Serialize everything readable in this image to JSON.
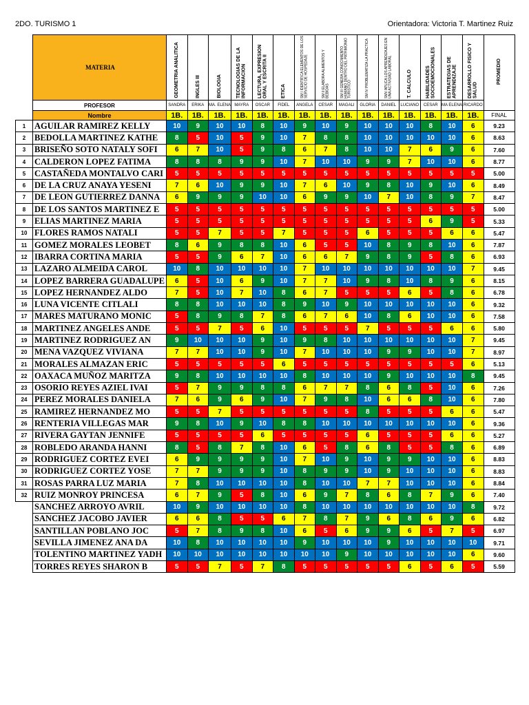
{
  "header": {
    "group": "2DO. TURISMO 1",
    "advisor": "Orientadora: Victoria T. Martinez Ruiz"
  },
  "labels": {
    "materia": "MATERIA",
    "profesor": "PROFESOR",
    "nombre": "Nombre",
    "promedio": "PROMEDIO",
    "final": "FINAL",
    "period": "1B."
  },
  "subjects": [
    {
      "name": "GEOMETRIA ANALITICA",
      "teacher": "SANDRA",
      "small": false
    },
    {
      "name": "INGLES III",
      "teacher": "ERIKA",
      "small": false
    },
    {
      "name": "BIOLOGIA",
      "teacher": "MA. ELENA",
      "small": false
    },
    {
      "name": "TECNOLOGIAS DE LA INFORMACION",
      "teacher": "MAYRA",
      "small": false
    },
    {
      "name": "LECTURA, EXPRESION ORAL Y ESCRITA II",
      "teacher": "OSCAR",
      "small": false
    },
    {
      "name": "ETICA",
      "teacher": "FIDEL",
      "small": false
    },
    {
      "name": "SM I IDENTIFICA ELEMENTOS DE LOS SERVICIO DE HOSPEDAJE",
      "teacher": "ANGELA",
      "small": true
    },
    {
      "name": "SM II ELABORA ALIMENTOS Y BEBIDAS",
      "teacher": "CESAR",
      "small": true
    },
    {
      "name": "SM III GENERA CONOCIMIENTO HUMANO DENTRO DEL PATRIMONIO TURISTICO",
      "teacher": "MAGALI",
      "small": true
    },
    {
      "name": "SM IV PROBLEMATIZA LA PRACTICA",
      "teacher": "GLORIA",
      "small": true
    },
    {
      "name": "SMV APLICA LOS APRENDIZAJES EN UNA ACTIVIDAD LABORAL",
      "teacher": "DANIEL",
      "small": true
    },
    {
      "name": "T. CALCULO",
      "teacher": "LUCIANO",
      "small": false
    },
    {
      "name": "HABILIDADES SOCIOEMOCIONALES",
      "teacher": "CESAR",
      "small": false
    },
    {
      "name": "ESTRATEGIAS DE APRENDIZAJE",
      "teacher": "MA ELENA",
      "small": false
    },
    {
      "name": "DESARROLLO FISICO Y SALUD",
      "teacher": "RICARDO",
      "small": false
    }
  ],
  "students": [
    {
      "n": "1",
      "name": "AGUILAR RAMIREZ KELLY",
      "grades": [
        10,
        9,
        10,
        10,
        8,
        10,
        9,
        10,
        9,
        10,
        10,
        10,
        8,
        10,
        6
      ],
      "avg": "9.23"
    },
    {
      "n": "2",
      "name": "BEDOLLA MARTINEZ KATHE",
      "grades": [
        8,
        5,
        10,
        5,
        9,
        10,
        7,
        8,
        8,
        10,
        10,
        10,
        10,
        10,
        6
      ],
      "avg": "8.63"
    },
    {
      "n": "3",
      "name": "BRISEÑO SOTO NATALY SOFI",
      "grades": [
        6,
        7,
        10,
        5,
        9,
        8,
        6,
        7,
        8,
        10,
        10,
        7,
        6,
        9,
        6
      ],
      "avg": "7.60"
    },
    {
      "n": "4",
      "name": "CALDERON LOPEZ FATIMA",
      "grades": [
        8,
        8,
        8,
        9,
        9,
        10,
        7,
        10,
        10,
        9,
        9,
        7,
        10,
        10,
        6
      ],
      "avg": "8.77"
    },
    {
      "n": "5",
      "name": "CASTAÑEDA MONTALVO CARI",
      "grades": [
        5,
        5,
        5,
        5,
        5,
        5,
        5,
        5,
        5,
        5,
        5,
        5,
        5,
        5,
        5
      ],
      "avg": "5.00"
    },
    {
      "n": "6",
      "name": "DE LA CRUZ ANAYA YESENI",
      "grades": [
        7,
        6,
        10,
        9,
        9,
        10,
        7,
        6,
        10,
        9,
        8,
        10,
        9,
        10,
        6
      ],
      "avg": "8.49"
    },
    {
      "n": "7",
      "name": "DE LEON GUTIERREZ DANNA",
      "grades": [
        6,
        9,
        9,
        9,
        10,
        10,
        6,
        9,
        9,
        10,
        7,
        10,
        8,
        9,
        7
      ],
      "avg": "8.47"
    },
    {
      "n": "8",
      "name": "DE LOS SANTOS MARTINEZ E",
      "grades": [
        5,
        5,
        5,
        5,
        5,
        5,
        5,
        5,
        5,
        5,
        5,
        5,
        5,
        5,
        5
      ],
      "avg": "5.00"
    },
    {
      "n": "9",
      "name": "ELIAS MARTINEZ MARIA",
      "grades": [
        5,
        5,
        5,
        5,
        5,
        5,
        5,
        5,
        5,
        5,
        5,
        5,
        6,
        9,
        5
      ],
      "avg": "5.33"
    },
    {
      "n": "10",
      "name": "FLORES RAMOS NATALI",
      "grades": [
        5,
        5,
        7,
        5,
        5,
        7,
        5,
        5,
        5,
        6,
        5,
        5,
        5,
        6,
        6
      ],
      "avg": "5.47"
    },
    {
      "n": "11",
      "name": "GOMEZ MORALES LEOBET",
      "grades": [
        8,
        6,
        9,
        8,
        8,
        10,
        6,
        5,
        5,
        10,
        8,
        9,
        8,
        10,
        6
      ],
      "avg": "7.87"
    },
    {
      "n": "12",
      "name": "IBARRA CORTINA MARIA",
      "grades": [
        5,
        5,
        9,
        6,
        7,
        10,
        6,
        6,
        7,
        9,
        8,
        9,
        5,
        8,
        6
      ],
      "avg": "6.93"
    },
    {
      "n": "13",
      "name": "LAZARO ALMEIDA CAROL",
      "grades": [
        10,
        8,
        10,
        10,
        10,
        10,
        7,
        10,
        10,
        10,
        10,
        10,
        10,
        10,
        7
      ],
      "avg": "9.45"
    },
    {
      "n": "14",
      "name": "LOPEZ BARRERA GUADALUPE",
      "grades": [
        6,
        5,
        10,
        6,
        9,
        10,
        7,
        7,
        10,
        9,
        8,
        10,
        8,
        9,
        6
      ],
      "avg": "8.15"
    },
    {
      "n": "15",
      "name": "LOPEZ HERNANDEZ ALDO",
      "grades": [
        7,
        5,
        10,
        7,
        10,
        8,
        6,
        7,
        5,
        5,
        5,
        6,
        5,
        8,
        6
      ],
      "avg": "6.78"
    },
    {
      "n": "16",
      "name": "LUNA VICENTE CITLALI",
      "grades": [
        8,
        8,
        10,
        10,
        10,
        8,
        9,
        10,
        9,
        10,
        10,
        10,
        10,
        10,
        6
      ],
      "avg": "9.32"
    },
    {
      "n": "17",
      "name": "MARES MATURANO MONIC",
      "grades": [
        5,
        8,
        9,
        8,
        7,
        8,
        6,
        7,
        6,
        10,
        8,
        6,
        10,
        10,
        6
      ],
      "avg": "7.58"
    },
    {
      "n": "18",
      "name": "MARTINEZ ANGELES ANDE",
      "grades": [
        5,
        5,
        7,
        5,
        6,
        10,
        5,
        5,
        5,
        7,
        5,
        5,
        5,
        6,
        6
      ],
      "avg": "5.80"
    },
    {
      "n": "19",
      "name": "MARTINEZ RODRIGUEZ AN",
      "grades": [
        9,
        10,
        10,
        10,
        9,
        10,
        9,
        8,
        10,
        10,
        10,
        10,
        10,
        10,
        7
      ],
      "avg": "9.45"
    },
    {
      "n": "20",
      "name": "MENA VAZQUEZ VIVIANA",
      "grades": [
        7,
        7,
        10,
        10,
        9,
        10,
        7,
        10,
        10,
        10,
        9,
        9,
        10,
        10,
        7
      ],
      "avg": "8.97"
    },
    {
      "n": "21",
      "name": "MORALES ALMAZAN ERIC",
      "grades": [
        5,
        5,
        5,
        5,
        5,
        6,
        5,
        5,
        5,
        5,
        5,
        5,
        5,
        5,
        6
      ],
      "avg": "5.13"
    },
    {
      "n": "22",
      "name": "OAXACA MUÑOZ MARITZA",
      "grades": [
        9,
        8,
        10,
        10,
        10,
        10,
        8,
        10,
        10,
        10,
        9,
        10,
        10,
        10,
        8
      ],
      "avg": "9.45"
    },
    {
      "n": "23",
      "name": "OSORIO REYES AZIEL IVAI",
      "grades": [
        5,
        7,
        9,
        9,
        8,
        8,
        6,
        7,
        7,
        8,
        6,
        8,
        5,
        10,
        6
      ],
      "avg": "7.26"
    },
    {
      "n": "24",
      "name": "PEREZ MORALES DANIELA",
      "grades": [
        7,
        6,
        9,
        6,
        9,
        10,
        7,
        9,
        8,
        10,
        6,
        6,
        8,
        10,
        6
      ],
      "avg": "7.80"
    },
    {
      "n": "25",
      "name": "RAMIREZ HERNANDEZ MO",
      "grades": [
        5,
        5,
        7,
        5,
        5,
        5,
        5,
        5,
        5,
        8,
        5,
        5,
        5,
        6,
        6
      ],
      "avg": "5.47"
    },
    {
      "n": "26",
      "name": "RENTERIA VILLEGAS MAR",
      "grades": [
        9,
        8,
        10,
        9,
        10,
        8,
        8,
        10,
        10,
        10,
        10,
        10,
        10,
        10,
        6
      ],
      "avg": "9.36"
    },
    {
      "n": "27",
      "name": "RIVERA GAYTAN JENNIFE",
      "grades": [
        5,
        5,
        5,
        5,
        6,
        5,
        5,
        5,
        5,
        6,
        5,
        5,
        5,
        6,
        6
      ],
      "avg": "5.27"
    },
    {
      "n": "28",
      "name": "ROBLEDO ARANDA HANNI",
      "grades": [
        8,
        5,
        8,
        7,
        8,
        10,
        6,
        5,
        8,
        6,
        8,
        5,
        5,
        8,
        6
      ],
      "avg": "6.89"
    },
    {
      "n": "29",
      "name": "RODRIGUEZ CORTEZ EVEI",
      "grades": [
        6,
        9,
        9,
        9,
        9,
        10,
        7,
        10,
        9,
        10,
        9,
        9,
        10,
        10,
        6
      ],
      "avg": "8.83"
    },
    {
      "n": "30",
      "name": "RODRIGUEZ CORTEZ YOSE",
      "grades": [
        7,
        7,
        9,
        9,
        9,
        10,
        8,
        9,
        9,
        10,
        9,
        10,
        10,
        10,
        6
      ],
      "avg": "8.83"
    },
    {
      "n": "31",
      "name": "ROSAS PARRA LUZ MARIA",
      "grades": [
        7,
        8,
        10,
        10,
        10,
        10,
        8,
        10,
        10,
        7,
        7,
        10,
        10,
        10,
        6
      ],
      "avg": "8.84"
    },
    {
      "n": "32",
      "name": "RUIZ MONROY PRINCESA",
      "grades": [
        6,
        7,
        9,
        5,
        8,
        10,
        6,
        9,
        7,
        8,
        6,
        8,
        7,
        9,
        6
      ],
      "avg": "7.40"
    },
    {
      "n": "",
      "name": "SANCHEZ ARROYO AVRIL",
      "grades": [
        10,
        9,
        10,
        10,
        10,
        10,
        8,
        10,
        10,
        10,
        10,
        10,
        10,
        10,
        8
      ],
      "avg": "9.72"
    },
    {
      "n": "",
      "name": "SANCHEZ JACOBO JAVIER",
      "grades": [
        6,
        6,
        8,
        5,
        5,
        6,
        7,
        8,
        7,
        9,
        6,
        8,
        6,
        9,
        6
      ],
      "avg": "6.82"
    },
    {
      "n": "",
      "name": "SANTILLAN POBLANO JOC",
      "grades": [
        5,
        7,
        8,
        9,
        8,
        10,
        6,
        5,
        6,
        9,
        9,
        6,
        5,
        7,
        5
      ],
      "avg": "6.97"
    },
    {
      "n": "",
      "name": "SEVILLA JIMENEZ ANA DA",
      "grades": [
        10,
        8,
        10,
        10,
        10,
        10,
        9,
        10,
        10,
        10,
        9,
        10,
        10,
        10,
        10
      ],
      "avg": "9.71"
    },
    {
      "n": "",
      "name": "TOLENTINO MARTINEZ YADH",
      "grades": [
        10,
        10,
        10,
        10,
        10,
        10,
        10,
        10,
        9,
        10,
        10,
        10,
        10,
        10,
        6
      ],
      "avg": "9.60"
    },
    {
      "n": "",
      "name": "TORRES REYES SHARON B",
      "grades": [
        5,
        5,
        7,
        5,
        7,
        8,
        5,
        5,
        5,
        5,
        5,
        6,
        5,
        6,
        5
      ],
      "avg": "5.59"
    }
  ]
}
